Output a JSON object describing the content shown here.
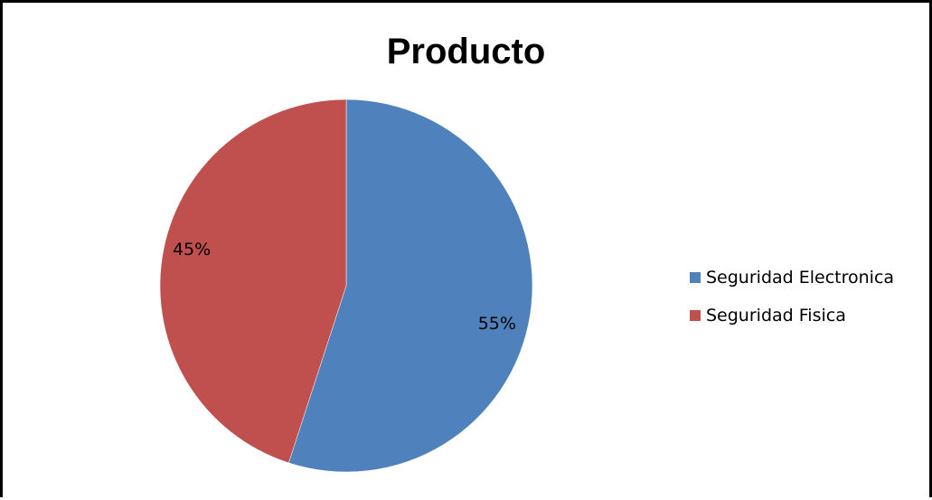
{
  "chart_data": {
    "type": "pie",
    "title": "Producto",
    "slices": [
      {
        "name": "Seguridad Electronica",
        "value": 55,
        "label": "55%",
        "color": "#4f81bd"
      },
      {
        "name": "Seguridad Fisica",
        "value": 45,
        "label": "45%",
        "color": "#c0504d"
      }
    ],
    "legend_position": "right"
  }
}
